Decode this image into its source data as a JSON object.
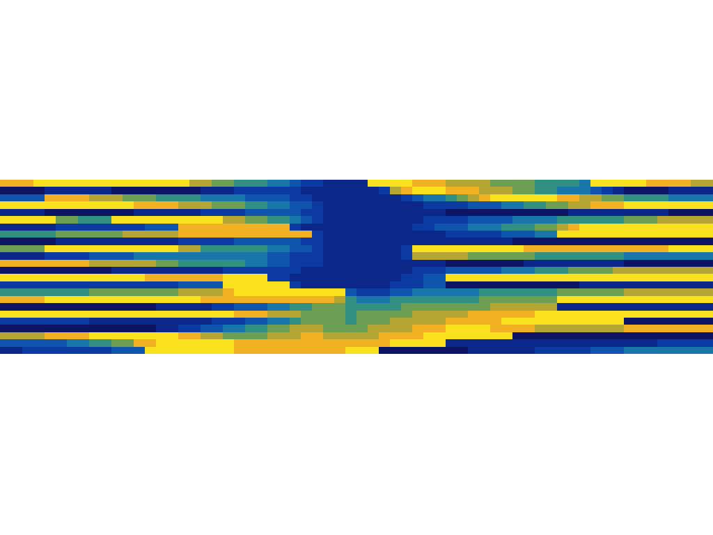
{
  "chart_data": {
    "type": "heatmap",
    "tick_labels": false,
    "cells": [
      [
        8,
        8,
        8,
        9,
        9,
        9,
        9,
        9,
        9,
        9,
        9,
        9,
        9,
        9,
        9,
        9,
        9,
        7,
        7,
        6,
        6,
        5,
        5,
        5,
        4,
        4,
        3,
        2,
        2,
        1,
        1,
        1,
        1,
        9,
        9,
        9,
        9,
        8,
        8,
        8,
        7,
        7,
        7,
        7,
        6,
        6,
        6,
        6,
        5,
        5,
        5,
        5,
        4,
        9,
        9,
        9,
        9,
        9,
        8,
        8,
        8,
        8,
        7,
        7
      ],
      [
        0,
        0,
        0,
        0,
        1,
        1,
        1,
        1,
        1,
        1,
        0,
        0,
        0,
        0,
        0,
        0,
        0,
        0,
        1,
        1,
        1,
        2,
        2,
        2,
        2,
        2,
        2,
        1,
        1,
        1,
        1,
        1,
        1,
        1,
        2,
        7,
        8,
        9,
        9,
        9,
        8,
        8,
        8,
        7,
        7,
        7,
        6,
        6,
        5,
        5,
        4,
        4,
        4,
        3,
        2,
        1,
        0,
        0,
        0,
        0,
        1,
        1,
        1,
        1
      ],
      [
        3,
        3,
        3,
        3,
        8,
        8,
        8,
        8,
        7,
        7,
        7,
        6,
        6,
        6,
        5,
        5,
        5,
        5,
        4,
        4,
        4,
        4,
        3,
        3,
        3,
        3,
        2,
        2,
        1,
        1,
        1,
        1,
        1,
        1,
        1,
        1,
        2,
        3,
        4,
        4,
        5,
        6,
        7,
        8,
        9,
        9,
        9,
        9,
        9,
        9,
        8,
        8,
        7,
        7,
        6,
        6,
        5,
        5,
        5,
        5,
        4,
        4,
        4,
        4
      ],
      [
        9,
        9,
        9,
        9,
        9,
        9,
        9,
        9,
        9,
        9,
        9,
        9,
        8,
        8,
        8,
        8,
        7,
        7,
        7,
        6,
        6,
        6,
        5,
        5,
        4,
        4,
        3,
        3,
        2,
        1,
        1,
        1,
        1,
        1,
        1,
        1,
        1,
        1,
        2,
        2,
        2,
        2,
        3,
        3,
        3,
        4,
        4,
        5,
        5,
        6,
        6,
        7,
        7,
        8,
        8,
        8,
        9,
        9,
        9,
        9,
        9,
        9,
        9,
        9
      ],
      [
        1,
        1,
        1,
        1,
        0,
        0,
        0,
        0,
        0,
        0,
        0,
        0,
        1,
        1,
        1,
        1,
        1,
        1,
        2,
        2,
        2,
        2,
        3,
        3,
        3,
        3,
        3,
        2,
        2,
        1,
        1,
        1,
        1,
        1,
        1,
        1,
        1,
        1,
        1,
        1,
        0,
        0,
        0,
        0,
        0,
        0,
        0,
        0,
        0,
        0,
        0,
        1,
        1,
        1,
        1,
        1,
        1,
        1,
        1,
        1,
        0,
        0,
        0,
        0
      ],
      [
        9,
        9,
        9,
        9,
        9,
        6,
        6,
        5,
        5,
        5,
        9,
        9,
        9,
        9,
        9,
        9,
        9,
        9,
        9,
        9,
        7,
        7,
        6,
        6,
        5,
        5,
        4,
        3,
        2,
        1,
        1,
        1,
        1,
        1,
        1,
        1,
        1,
        1,
        2,
        2,
        2,
        2,
        3,
        3,
        3,
        3,
        4,
        4,
        4,
        4,
        5,
        5,
        5,
        5,
        5,
        5,
        6,
        6,
        6,
        7,
        7,
        7,
        7,
        7
      ],
      [
        1,
        1,
        1,
        1,
        1,
        2,
        2,
        2,
        2,
        2,
        2,
        2,
        2,
        3,
        3,
        3,
        8,
        8,
        8,
        8,
        8,
        8,
        8,
        8,
        8,
        8,
        2,
        1,
        1,
        1,
        1,
        1,
        1,
        1,
        1,
        1,
        1,
        2,
        2,
        3,
        3,
        3,
        4,
        4,
        4,
        5,
        5,
        5,
        6,
        6,
        7,
        8,
        9,
        9,
        9,
        9,
        9,
        9,
        9,
        9,
        9,
        9,
        9,
        9
      ],
      [
        5,
        5,
        5,
        5,
        5,
        6,
        6,
        6,
        6,
        6,
        6,
        7,
        7,
        7,
        7,
        7,
        8,
        8,
        8,
        8,
        8,
        8,
        8,
        8,
        8,
        8,
        8,
        8,
        2,
        1,
        1,
        1,
        1,
        1,
        1,
        1,
        1,
        1,
        1,
        1,
        2,
        2,
        2,
        2,
        2,
        3,
        3,
        3,
        4,
        4,
        9,
        9,
        9,
        9,
        9,
        9,
        9,
        9,
        9,
        9,
        9,
        9,
        9,
        9
      ],
      [
        0,
        0,
        0,
        0,
        0,
        1,
        1,
        1,
        1,
        1,
        1,
        1,
        1,
        1,
        1,
        1,
        2,
        2,
        2,
        2,
        2,
        3,
        3,
        3,
        3,
        3,
        3,
        2,
        2,
        1,
        1,
        1,
        1,
        1,
        1,
        1,
        1,
        1,
        1,
        1,
        1,
        1,
        1,
        1,
        1,
        1,
        0,
        0,
        0,
        0,
        0,
        0,
        0,
        0,
        0,
        0,
        0,
        0,
        0,
        0,
        0,
        0,
        0,
        0
      ],
      [
        6,
        6,
        6,
        6,
        9,
        9,
        9,
        9,
        9,
        9,
        9,
        9,
        9,
        9,
        9,
        9,
        7,
        7,
        5,
        5,
        5,
        5,
        5,
        5,
        4,
        4,
        3,
        3,
        2,
        1,
        1,
        1,
        1,
        1,
        1,
        1,
        2,
        9,
        9,
        9,
        9,
        9,
        9,
        9,
        9,
        9,
        9,
        8,
        8,
        8,
        8,
        8,
        8,
        8,
        8,
        8,
        8,
        8,
        8,
        8,
        9,
        9,
        9,
        9
      ],
      [
        1,
        1,
        1,
        1,
        2,
        2,
        2,
        2,
        3,
        3,
        3,
        3,
        4,
        4,
        4,
        4,
        4,
        4,
        4,
        4,
        4,
        4,
        4,
        4,
        3,
        3,
        2,
        2,
        2,
        1,
        1,
        1,
        1,
        1,
        1,
        1,
        2,
        7,
        7,
        7,
        7,
        7,
        6,
        6,
        6,
        6,
        6,
        6,
        5,
        5,
        5,
        5,
        5,
        5,
        5,
        5,
        4,
        4,
        4,
        4,
        4,
        4,
        4,
        4
      ],
      [
        8,
        8,
        8,
        8,
        8,
        8,
        8,
        8,
        7,
        7,
        7,
        7,
        7,
        7,
        6,
        6,
        5,
        5,
        5,
        5,
        5,
        5,
        4,
        4,
        3,
        3,
        2,
        2,
        2,
        1,
        1,
        1,
        1,
        1,
        1,
        1,
        1,
        1,
        1,
        1,
        0,
        0,
        0,
        0,
        0,
        0,
        0,
        1,
        1,
        1,
        1,
        1,
        1,
        1,
        1,
        1,
        0,
        0,
        0,
        0,
        0,
        0,
        0,
        0
      ],
      [
        0,
        0,
        0,
        0,
        0,
        0,
        0,
        0,
        0,
        0,
        1,
        1,
        1,
        1,
        1,
        1,
        1,
        1,
        1,
        1,
        2,
        2,
        2,
        2,
        2,
        2,
        2,
        1,
        1,
        1,
        1,
        1,
        1,
        1,
        1,
        1,
        1,
        2,
        2,
        2,
        3,
        3,
        3,
        3,
        3,
        4,
        4,
        4,
        5,
        5,
        5,
        6,
        6,
        6,
        6,
        7,
        7,
        7,
        7,
        7,
        7,
        7,
        7,
        7
      ],
      [
        9,
        9,
        9,
        9,
        9,
        9,
        9,
        9,
        9,
        9,
        9,
        9,
        9,
        8,
        8,
        8,
        8,
        8,
        8,
        8,
        9,
        9,
        9,
        9,
        2,
        2,
        1,
        1,
        1,
        1,
        1,
        1,
        1,
        1,
        1,
        1,
        2,
        2,
        3,
        3,
        9,
        9,
        9,
        9,
        9,
        9,
        9,
        9,
        9,
        9,
        9,
        9,
        9,
        9,
        9,
        9,
        9,
        9,
        9,
        9,
        9,
        9,
        9,
        9
      ],
      [
        2,
        2,
        2,
        2,
        2,
        2,
        2,
        2,
        2,
        2,
        2,
        2,
        2,
        2,
        2,
        2,
        3,
        3,
        3,
        3,
        9,
        9,
        9,
        9,
        9,
        9,
        2,
        1,
        1,
        1,
        1,
        1,
        1,
        1,
        1,
        2,
        2,
        2,
        3,
        3,
        0,
        0,
        0,
        0,
        0,
        0,
        0,
        0,
        0,
        0,
        0,
        0,
        1,
        1,
        1,
        1,
        1,
        1,
        1,
        1,
        1,
        1,
        1,
        1
      ],
      [
        5,
        5,
        5,
        5,
        5,
        5,
        5,
        5,
        6,
        6,
        6,
        6,
        6,
        6,
        6,
        6,
        7,
        7,
        7,
        7,
        8,
        9,
        9,
        9,
        9,
        9,
        9,
        9,
        9,
        9,
        9,
        3,
        2,
        2,
        2,
        3,
        3,
        4,
        4,
        4,
        4,
        4,
        4,
        5,
        5,
        5,
        5,
        5,
        5,
        5,
        6,
        6,
        6,
        6,
        6,
        6,
        7,
        7,
        7,
        7,
        7,
        7,
        7,
        7
      ],
      [
        8,
        8,
        8,
        8,
        9,
        9,
        9,
        9,
        9,
        9,
        9,
        9,
        9,
        9,
        9,
        9,
        9,
        9,
        8,
        8,
        8,
        8,
        8,
        8,
        8,
        8,
        8,
        8,
        8,
        8,
        7,
        5,
        4,
        4,
        4,
        5,
        5,
        5,
        5,
        5,
        5,
        5,
        5,
        6,
        6,
        6,
        6,
        6,
        6,
        6,
        9,
        9,
        9,
        9,
        9,
        9,
        9,
        9,
        9,
        9,
        9,
        9,
        9,
        9
      ],
      [
        0,
        0,
        0,
        0,
        0,
        0,
        0,
        0,
        0,
        0,
        0,
        0,
        0,
        0,
        1,
        1,
        1,
        1,
        1,
        2,
        2,
        3,
        3,
        3,
        4,
        4,
        5,
        5,
        6,
        6,
        6,
        5,
        5,
        5,
        5,
        5,
        6,
        6,
        6,
        6,
        6,
        6,
        6,
        6,
        7,
        7,
        7,
        7,
        7,
        7,
        1,
        1,
        1,
        1,
        1,
        1,
        1,
        1,
        1,
        1,
        1,
        1,
        1,
        1
      ],
      [
        9,
        9,
        9,
        9,
        9,
        9,
        9,
        9,
        9,
        9,
        9,
        9,
        9,
        9,
        9,
        9,
        9,
        9,
        9,
        9,
        9,
        8,
        8,
        8,
        7,
        7,
        7,
        6,
        6,
        6,
        6,
        5,
        6,
        6,
        6,
        6,
        6,
        7,
        7,
        7,
        7,
        7,
        8,
        8,
        8,
        8,
        8,
        8,
        9,
        9,
        9,
        9,
        9,
        9,
        9,
        9,
        9,
        9,
        9,
        9,
        9,
        9,
        9,
        9
      ],
      [
        2,
        2,
        2,
        2,
        2,
        2,
        2,
        2,
        1,
        1,
        1,
        1,
        1,
        1,
        1,
        1,
        1,
        1,
        1,
        2,
        2,
        2,
        3,
        3,
        4,
        4,
        5,
        6,
        6,
        6,
        6,
        5,
        6,
        6,
        6,
        7,
        7,
        7,
        7,
        7,
        8,
        8,
        8,
        8,
        8,
        9,
        9,
        9,
        9,
        9,
        9,
        9,
        9,
        9,
        9,
        9,
        0,
        0,
        0,
        0,
        0,
        0,
        0,
        0
      ],
      [
        0,
        0,
        0,
        0,
        0,
        0,
        0,
        0,
        0,
        0,
        0,
        0,
        0,
        0,
        1,
        1,
        2,
        2,
        3,
        3,
        4,
        4,
        5,
        5,
        6,
        6,
        7,
        7,
        7,
        6,
        6,
        6,
        6,
        7,
        7,
        7,
        7,
        8,
        8,
        8,
        9,
        9,
        9,
        9,
        8,
        8,
        8,
        8,
        7,
        7,
        7,
        7,
        7,
        7,
        7,
        7,
        8,
        8,
        8,
        8,
        8,
        8,
        8,
        8
      ],
      [
        7,
        7,
        7,
        7,
        8,
        8,
        8,
        8,
        9,
        9,
        9,
        9,
        9,
        9,
        9,
        9,
        8,
        8,
        7,
        7,
        6,
        6,
        6,
        6,
        7,
        7,
        7,
        8,
        8,
        7,
        7,
        7,
        7,
        7,
        8,
        8,
        8,
        8,
        9,
        9,
        9,
        9,
        9,
        9,
        9,
        9,
        0,
        0,
        0,
        0,
        0,
        0,
        0,
        0,
        0,
        0,
        0,
        0,
        0,
        0,
        0,
        0,
        0,
        0
      ],
      [
        3,
        3,
        3,
        3,
        3,
        3,
        4,
        4,
        5,
        5,
        6,
        6,
        8,
        8,
        9,
        9,
        9,
        9,
        9,
        9,
        9,
        8,
        8,
        8,
        8,
        8,
        8,
        8,
        8,
        8,
        8,
        8,
        8,
        8,
        8,
        9,
        9,
        9,
        9,
        9,
        1,
        1,
        1,
        1,
        1,
        1,
        1,
        1,
        1,
        1,
        1,
        1,
        1,
        1,
        1,
        1,
        1,
        1,
        1,
        2,
        2,
        2,
        2,
        2
      ],
      [
        1,
        1,
        2,
        2,
        2,
        2,
        2,
        2,
        2,
        2,
        3,
        3,
        3,
        9,
        9,
        9,
        9,
        9,
        9,
        9,
        9,
        8,
        8,
        8,
        8,
        8,
        8,
        8,
        8,
        8,
        8,
        9,
        9,
        9,
        0,
        0,
        0,
        0,
        0,
        0,
        0,
        0,
        1,
        1,
        1,
        1,
        1,
        1,
        2,
        2,
        2,
        2,
        2,
        3,
        3,
        3,
        4,
        4,
        4,
        4,
        4,
        4,
        4,
        4
      ]
    ]
  }
}
